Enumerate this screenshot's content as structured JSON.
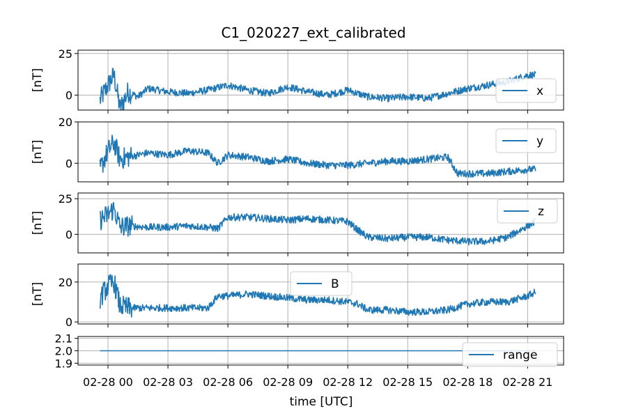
{
  "figure": {
    "title": "C1_020227_ext_calibrated",
    "xlabel": "time [UTC]",
    "x_tick_labels": [
      "02-28 00",
      "02-28 03",
      "02-28 06",
      "02-28 09",
      "02-28 12",
      "02-28 15",
      "02-28 18",
      "02-28 21"
    ],
    "x_tick_hours": [
      0,
      3,
      6,
      9,
      12,
      15,
      18,
      21
    ],
    "line_color": "#1f77b4",
    "grid_color": "#b0b0b0"
  },
  "chart_data": [
    {
      "type": "line",
      "ylabel": "[nT]",
      "series": [
        {
          "name": "x",
          "x_hours": [
            -0.4,
            0.0,
            0.3,
            0.6,
            1.0,
            1.5,
            2.0,
            3.0,
            4.0,
            5.0,
            6.0,
            7.0,
            8.0,
            9.0,
            10.0,
            11.0,
            12.0,
            13.0,
            14.0,
            15.0,
            16.0,
            17.0,
            18.0,
            19.0,
            20.0,
            20.5,
            21.0,
            21.4
          ],
          "values": [
            -3,
            6,
            12,
            -8,
            2,
            -1,
            4,
            2,
            1,
            3,
            6,
            3,
            1,
            5,
            2,
            0,
            3,
            -1,
            -2,
            -1,
            -2,
            1,
            4,
            6,
            8,
            10,
            12,
            12
          ]
        }
      ],
      "ylim": [
        -9,
        27
      ],
      "y_ticks": [
        0,
        25
      ],
      "legend": "right"
    },
    {
      "type": "line",
      "ylabel": "[nT]",
      "series": [
        {
          "name": "y",
          "x_hours": [
            -0.4,
            0.0,
            0.3,
            0.6,
            1.0,
            2.0,
            3.0,
            4.0,
            5.0,
            5.5,
            6.0,
            7.0,
            8.0,
            9.0,
            10.0,
            11.0,
            12.0,
            13.0,
            14.0,
            15.0,
            16.0,
            17.0,
            17.5,
            18.0,
            19.0,
            20.0,
            21.0,
            21.4
          ],
          "values": [
            -3,
            6,
            10,
            2,
            3,
            5,
            4,
            6,
            5,
            0,
            4,
            3,
            1,
            2,
            0,
            -1,
            -1,
            0,
            1,
            1,
            2,
            3,
            -5,
            -5,
            -5,
            -4,
            -3,
            -3
          ]
        }
      ],
      "ylim": [
        -9,
        20
      ],
      "y_ticks": [
        0,
        20
      ],
      "legend": "top-right"
    },
    {
      "type": "line",
      "ylabel": "[nT]",
      "series": [
        {
          "name": "z",
          "x_hours": [
            -0.4,
            0.0,
            0.3,
            0.6,
            1.0,
            2.0,
            3.0,
            4.0,
            5.0,
            5.5,
            6.0,
            7.0,
            8.0,
            9.0,
            10.0,
            11.0,
            12.0,
            12.5,
            13.0,
            14.0,
            15.0,
            16.0,
            17.0,
            18.0,
            19.0,
            20.0,
            21.0,
            21.4
          ],
          "values": [
            10,
            14,
            18,
            5,
            6,
            5,
            5,
            6,
            5,
            4,
            12,
            12,
            11,
            10,
            11,
            10,
            9,
            3,
            -2,
            -3,
            -2,
            -2,
            -4,
            -5,
            -5,
            -2,
            6,
            9
          ]
        }
      ],
      "ylim": [
        -13,
        29
      ],
      "y_ticks": [
        0,
        25
      ],
      "legend": "top-right"
    },
    {
      "type": "line",
      "ylabel": "[nT]",
      "series": [
        {
          "name": "B",
          "x_hours": [
            -0.4,
            0.0,
            0.3,
            0.6,
            1.0,
            2.0,
            3.0,
            4.0,
            5.0,
            5.5,
            6.0,
            7.0,
            8.0,
            9.0,
            10.0,
            11.0,
            12.0,
            12.5,
            13.0,
            14.0,
            15.0,
            16.0,
            17.0,
            18.0,
            19.0,
            20.0,
            21.0,
            21.4
          ],
          "values": [
            12,
            18,
            20,
            8,
            7,
            7,
            7,
            7,
            7,
            13,
            13,
            14,
            13,
            12,
            11,
            11,
            10,
            9,
            6,
            6,
            5,
            5,
            6,
            9,
            10,
            10,
            13,
            15
          ]
        }
      ],
      "ylim": [
        -1,
        29
      ],
      "y_ticks": [
        0,
        20
      ],
      "legend": "top-center"
    },
    {
      "type": "line",
      "ylabel": "",
      "series": [
        {
          "name": "range",
          "x_hours": [
            -0.4,
            21.4
          ],
          "values": [
            2.0,
            2.0
          ]
        }
      ],
      "ylim": [
        1.885,
        2.115
      ],
      "y_ticks": [
        1.9,
        2.0,
        2.1
      ],
      "y_tick_labels": [
        "1.9",
        "2.0",
        "2.1"
      ],
      "legend": "bottom-right"
    }
  ]
}
